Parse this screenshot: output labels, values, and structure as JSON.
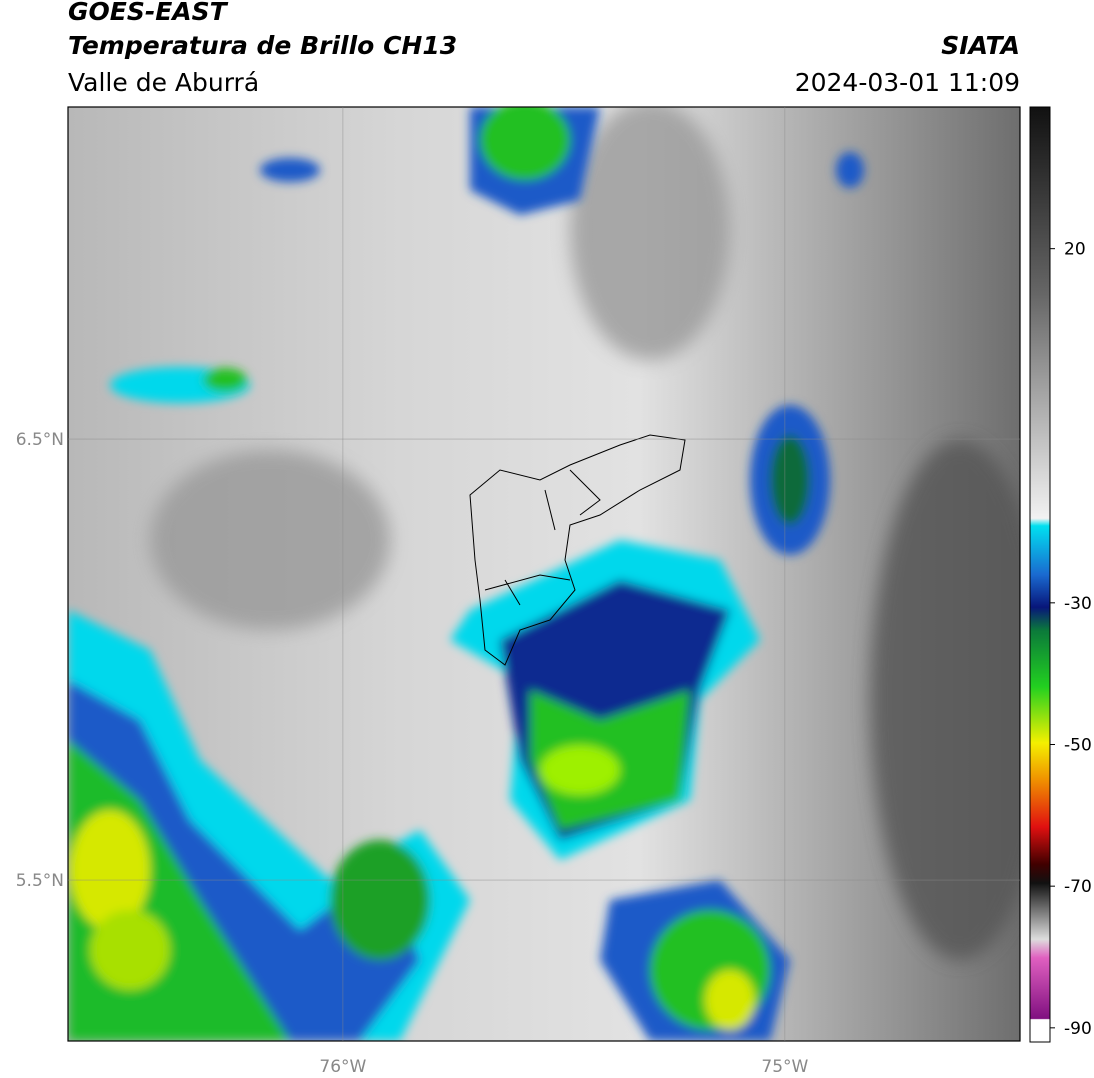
{
  "header": {
    "title": "GOES-EAST",
    "subtitle": "Temperatura de Brillo CH13",
    "region": "Valle de Aburrá",
    "source": "SIATA",
    "datetime": "2024-03-01 11:09"
  },
  "map": {
    "xlim": [
      -76.622,
      -74.468
    ],
    "ylim": [
      5.135,
      7.253
    ],
    "xticks": [
      {
        "value": -76,
        "label": "76°W"
      },
      {
        "value": -75,
        "label": "75°W"
      }
    ],
    "yticks": [
      {
        "value": 6.5,
        "label": "6.5°N"
      },
      {
        "value": 5.5,
        "label": "5.5°N"
      }
    ],
    "grid": true
  },
  "colorbar": {
    "lim": [
      -92,
      40
    ],
    "ticks": [
      20,
      -30,
      -50,
      -70,
      -90
    ]
  }
}
